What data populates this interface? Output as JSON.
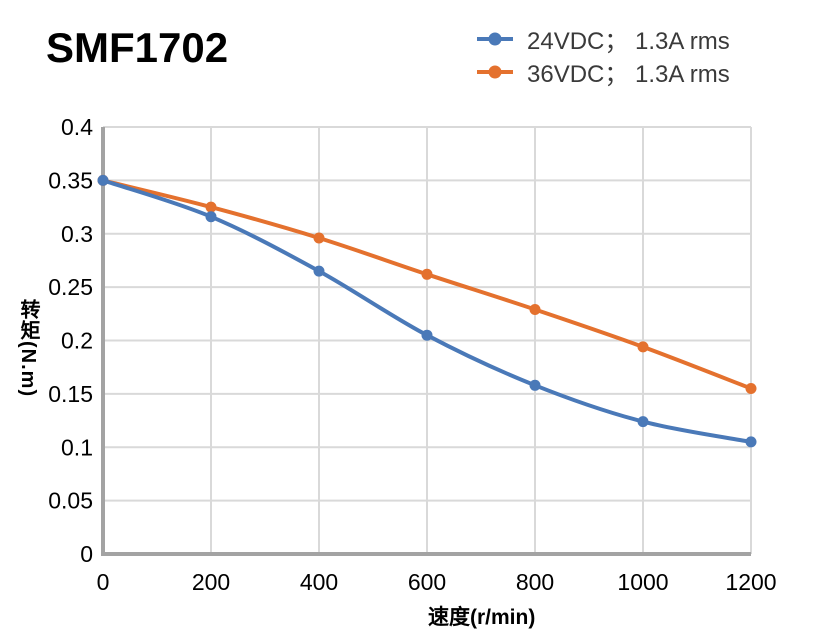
{
  "page": {
    "title": "SMF1702",
    "background": "#FFFFFF"
  },
  "chart_data": {
    "type": "line",
    "title": "SMF1702",
    "xlabel": "速度(r/min)",
    "ylabel": "转矩(N.m)",
    "x": [
      0,
      200,
      400,
      600,
      800,
      1000,
      1200
    ],
    "series": [
      {
        "name": "24VDC； 1.3A rms",
        "color": "#4A79B8",
        "values": [
          0.35,
          0.316,
          0.265,
          0.205,
          0.158,
          0.124,
          0.105
        ]
      },
      {
        "name": "36VDC； 1.3A rms",
        "color": "#E4712E",
        "values": [
          0.35,
          0.325,
          0.296,
          0.262,
          0.229,
          0.194,
          0.155
        ]
      }
    ],
    "xlim": [
      0,
      1200
    ],
    "ylim": [
      0,
      0.4
    ],
    "x_ticks": [
      0,
      200,
      400,
      600,
      800,
      1000,
      1200
    ],
    "x_tick_labels": [
      "0",
      "200",
      "400",
      "600",
      "800",
      "1000",
      "1200"
    ],
    "y_ticks": [
      0,
      0.05,
      0.1,
      0.15,
      0.2,
      0.25,
      0.3,
      0.35,
      0.4
    ],
    "y_tick_labels": [
      "0",
      "0.05",
      "0.1",
      "0.15",
      "0.2",
      "0.25",
      "0.3",
      "0.35",
      "0.4"
    ],
    "grid": true,
    "smooth_lines": true,
    "legend_position": "top-right",
    "colors": {
      "grid": "#D9D9D9",
      "axis": "#A3A3A3",
      "tick_text": "#000000",
      "legend_text": "#3A3A3A",
      "title_text": "#000000"
    }
  }
}
